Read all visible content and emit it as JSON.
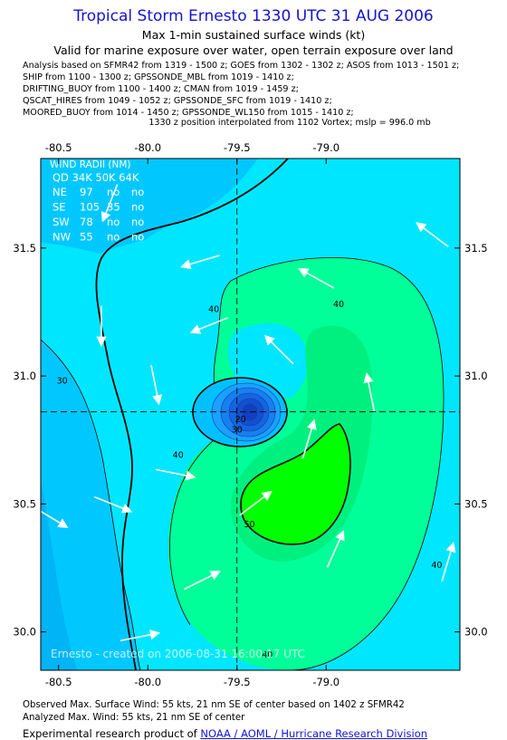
{
  "header": {
    "title": "Tropical Storm Ernesto 1330 UTC 31 AUG 2006",
    "subtitle": "Max 1-min sustained surface winds (kt)",
    "validity": "Valid for marine exposure over water, open terrain exposure over land",
    "sources": [
      "Analysis based on  SFMR42 from 1319 - 1500 z;  GOES from 1302 - 1302 z;  ASOS from 1013 - 1501 z;",
      "SHIP from 1100 - 1300 z;  GPSSONDE_MBL from 1019 - 1410 z;",
      "DRIFTING_BUOY from 1100 - 1400 z;  CMAN from 1019 - 1459 z;",
      "QSCAT_HIRES from 1049 - 1052 z;  GPSSONDE_SFC from 1019 - 1410 z;",
      "MOORED_BUOY from 1014 - 1450 z;  GPSSONDE_WL150 from 1015 - 1410 z;"
    ],
    "position_note": "1330 z position interpolated from 1102 Vortex; mslp = 996.0 mb"
  },
  "wind_radii": {
    "title": "WIND RADII (NM)",
    "header": "QD 34K 50K 64K",
    "rows": [
      {
        "qd": "NE",
        "r34": "97",
        "r50": "no",
        "r64": "no"
      },
      {
        "qd": "SE",
        "r34": "105",
        "r50": "35",
        "r64": "no"
      },
      {
        "qd": "SW",
        "r34": "78",
        "r50": "no",
        "r64": "no"
      },
      {
        "qd": "NW",
        "r34": "55",
        "r50": "no",
        "r64": "no"
      }
    ]
  },
  "chart_data": {
    "type": "contour",
    "xlim": [
      -80.6,
      -78.25
    ],
    "ylim": [
      29.85,
      31.85
    ],
    "x_ticks": [
      "-80.5",
      "-80.0",
      "-79.5",
      "-79.0"
    ],
    "y_ticks": [
      "31.5",
      "31.0",
      "30.5",
      "30.0"
    ],
    "x_tick_values": [
      -80.5,
      -80.0,
      -79.5,
      -79.0
    ],
    "y_tick_values": [
      31.5,
      31.0,
      30.5,
      30.0
    ],
    "center": {
      "lon": -79.5,
      "lat": 30.86
    },
    "contour_labels": [
      {
        "text": "40",
        "lon": -79.63,
        "lat": 31.25
      },
      {
        "text": "40",
        "lon": -78.93,
        "lat": 31.27
      },
      {
        "text": "30",
        "lon": -80.48,
        "lat": 30.97
      },
      {
        "text": "40",
        "lon": -79.83,
        "lat": 30.68
      },
      {
        "text": "50",
        "lon": -79.43,
        "lat": 30.41
      },
      {
        "text": "40",
        "lon": -78.38,
        "lat": 30.25
      },
      {
        "text": "30",
        "lon": -79.5,
        "lat": 30.78
      },
      {
        "text": "20",
        "lon": -79.48,
        "lat": 30.82
      },
      {
        "text": "40",
        "lon": -79.33,
        "lat": 29.9
      }
    ],
    "wind_vectors": [
      {
        "lon": -80.21,
        "lat": 31.68,
        "u": -0.4,
        "v": -1
      },
      {
        "lon": -79.7,
        "lat": 31.45,
        "u": -1,
        "v": -0.3
      },
      {
        "lon": -79.05,
        "lat": 31.38,
        "u": -0.9,
        "v": 0.5
      },
      {
        "lon": -78.4,
        "lat": 31.55,
        "u": -0.8,
        "v": 0.6
      },
      {
        "lon": -79.65,
        "lat": 31.2,
        "u": -1,
        "v": -0.4
      },
      {
        "lon": -79.26,
        "lat": 31.1,
        "u": -0.6,
        "v": 0.6
      },
      {
        "lon": -80.26,
        "lat": 31.2,
        "u": 0,
        "v": -1
      },
      {
        "lon": -79.96,
        "lat": 30.97,
        "u": 0.2,
        "v": -1
      },
      {
        "lon": -78.75,
        "lat": 30.93,
        "u": -0.2,
        "v": 1
      },
      {
        "lon": -79.1,
        "lat": 30.75,
        "u": 0.3,
        "v": 1
      },
      {
        "lon": -79.85,
        "lat": 30.62,
        "u": 1,
        "v": -0.2
      },
      {
        "lon": -79.4,
        "lat": 30.5,
        "u": 0.8,
        "v": 0.6
      },
      {
        "lon": -80.2,
        "lat": 30.5,
        "u": 1,
        "v": -0.4
      },
      {
        "lon": -78.95,
        "lat": 30.32,
        "u": 0.4,
        "v": 0.9
      },
      {
        "lon": -79.7,
        "lat": 30.2,
        "u": 1,
        "v": 0.5
      },
      {
        "lon": -80.05,
        "lat": 29.98,
        "u": 1,
        "v": 0.2
      },
      {
        "lon": -78.32,
        "lat": 30.27,
        "u": 0.3,
        "v": 1
      },
      {
        "lon": -80.55,
        "lat": 30.45,
        "u": 0.5,
        "v": -0.3
      }
    ]
  },
  "credit": "Ernesto  -  created on 2006-08-31 16:00:17 UTC",
  "footer": {
    "observed": "Observed Max. Surface Wind: 55 kts, 21 nm SE of center based on 1402 z SFMR42",
    "analyzed": "Analyzed Max. Wind: 55 kts, 21 nm SE of center",
    "product_prefix": "Experimental research product of ",
    "product_link": "NOAA / AOML / Hurricane Research Division"
  },
  "colors": {
    "title": "#1414d2",
    "band_lt20": "#00c8ff",
    "band_30_40": "#00e6ff",
    "band_40_50": "#00ff99",
    "band_50_60": "#00ff00",
    "eye": "#1040c0"
  }
}
